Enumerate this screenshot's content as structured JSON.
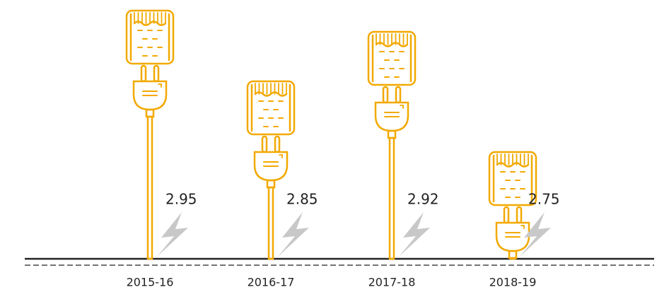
{
  "chart_data": {
    "type": "pictograph",
    "categories": [
      "2015-16",
      "2016-17",
      "2017-18",
      "2018-19"
    ],
    "values": [
      2.95,
      2.85,
      2.92,
      2.75
    ],
    "color": "#f2a900"
  }
}
